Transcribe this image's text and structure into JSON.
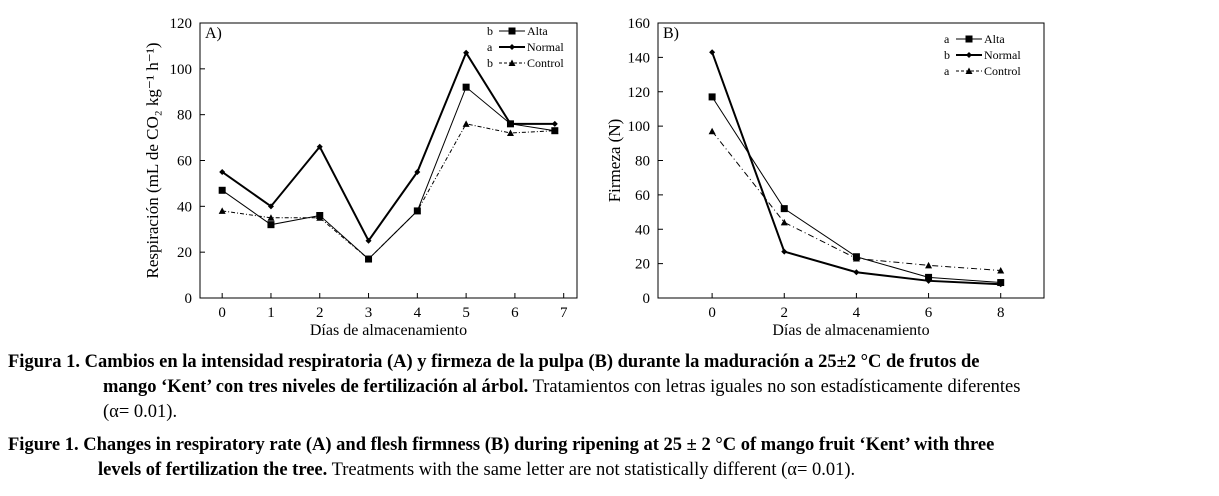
{
  "chart_data": [
    {
      "type": "line",
      "panel_label": "A)",
      "ylabel": "Respiración (mL de CO₂ kg⁻¹ h⁻¹)",
      "xlabel": "Días de almacenamiento",
      "ylim": [
        0,
        120
      ],
      "yticks": [
        0,
        20,
        40,
        60,
        80,
        100,
        120
      ],
      "xticks": [
        "0",
        "1",
        "2",
        "3",
        "4",
        "5",
        "6",
        "7"
      ],
      "grid": false,
      "legend_position": "top-right",
      "legend": [
        {
          "letter": "b",
          "name": "Alta"
        },
        {
          "letter": "a",
          "name": "Normal"
        },
        {
          "letter": "b",
          "name": "Control"
        }
      ],
      "series": [
        {
          "name": "Alta",
          "x": [
            0,
            1.1,
            2.2,
            3.3,
            4.4,
            5.5,
            6.5,
            7.5
          ],
          "values": [
            47,
            32,
            36,
            17,
            38,
            92,
            76,
            73
          ]
        },
        {
          "name": "Normal",
          "x": [
            0,
            1.1,
            2.2,
            3.3,
            4.4,
            5.5,
            6.5,
            7.5
          ],
          "values": [
            55,
            40,
            66,
            25,
            55,
            107,
            76,
            76
          ]
        },
        {
          "name": "Control",
          "x": [
            0,
            1.1,
            2.2,
            3.3,
            4.4,
            5.5,
            6.5,
            7.5
          ],
          "values": [
            38,
            35,
            35,
            17,
            38,
            76,
            72,
            73
          ]
        }
      ]
    },
    {
      "type": "line",
      "panel_label": "B)",
      "ylabel": "Firmeza (N)",
      "xlabel": "Días de almacenamiento",
      "ylim": [
        0,
        160
      ],
      "yticks": [
        0,
        20,
        40,
        60,
        80,
        100,
        120,
        140,
        160
      ],
      "xticks": [
        "0",
        "2",
        "4",
        "6",
        "8"
      ],
      "grid": false,
      "legend_position": "top-right",
      "legend": [
        {
          "letter": "a",
          "name": "Alta"
        },
        {
          "letter": "b",
          "name": "Normal"
        },
        {
          "letter": "a",
          "name": "Control"
        }
      ],
      "series": [
        {
          "name": "Alta",
          "x": [
            0,
            2,
            4,
            6,
            8
          ],
          "values": [
            117,
            52,
            24,
            12,
            9
          ]
        },
        {
          "name": "Normal",
          "x": [
            0,
            2,
            4,
            6,
            8
          ],
          "values": [
            143,
            27,
            15,
            10,
            8
          ]
        },
        {
          "name": "Control",
          "x": [
            0,
            2,
            4,
            6,
            8
          ],
          "values": [
            97,
            44,
            23,
            19,
            16
          ]
        }
      ]
    }
  ],
  "caption_es": {
    "label": "Figura 1.",
    "bold_line1": "Cambios en la intensidad respiratoria (A) y firmeza de la pulpa (B) durante la maduración a 25±2 °C de frutos de",
    "bold_line2": "mango ‘Kent’ con tres niveles de fertilización al árbol.",
    "normal_line2": "Tratamientos con letras iguales no son estadísticamente diferentes",
    "normal_line3": "(α= 0.01)."
  },
  "caption_en": {
    "label": "Figure 1.",
    "bold_line1": "Changes in respiratory rate (A) and flesh firmness (B) during ripening at 25 ± 2 °C of mango fruit ‘Kent’ with three",
    "bold_line2": "levels of fertilization the tree.",
    "normal_line2": "Treatments with the same letter are not statistically different (α= 0.01)."
  }
}
